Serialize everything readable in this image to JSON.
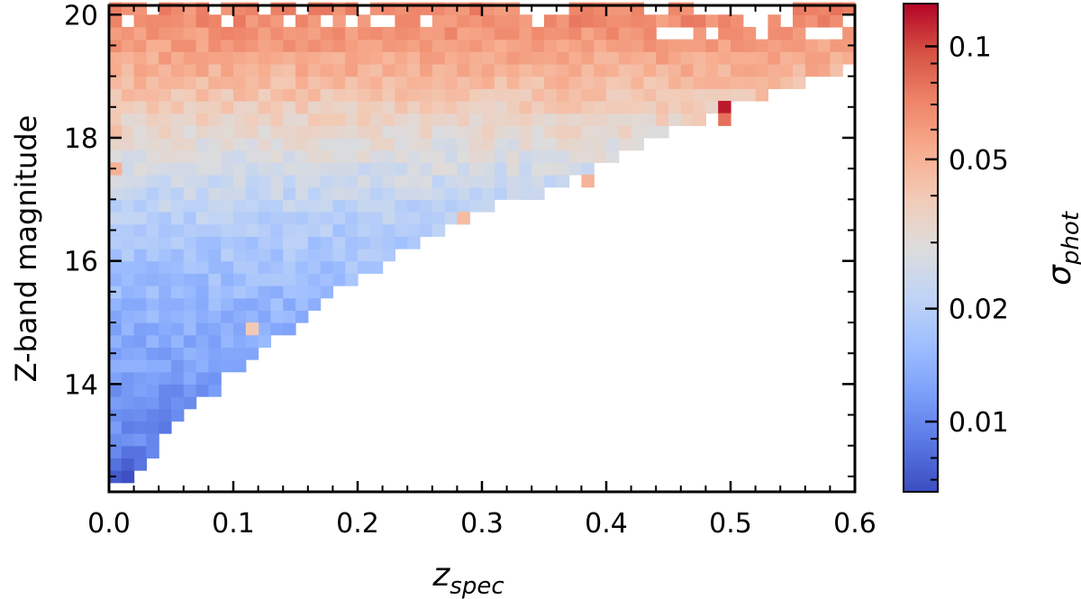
{
  "chart_data": {
    "type": "heatmap",
    "xlabel": "z",
    "xlabel_sub": "spec",
    "ylabel": "Z-band magnitude",
    "colorbar_label": "σ",
    "colorbar_label_sub": "phot",
    "xlim": [
      0.0,
      0.6
    ],
    "ylim": [
      12.25,
      20.15
    ],
    "x_ticks": [
      0.0,
      0.1,
      0.2,
      0.3,
      0.4,
      0.5,
      0.6
    ],
    "x_tick_labels": [
      "0.0",
      "0.1",
      "0.2",
      "0.3",
      "0.4",
      "0.5",
      "0.6"
    ],
    "y_ticks": [
      14,
      16,
      18,
      20
    ],
    "y_tick_labels": [
      "14",
      "16",
      "18",
      "20"
    ],
    "colorbar_scale": "log",
    "colorbar_range": [
      0.0065,
      0.13
    ],
    "colorbar_ticks": [
      0.01,
      0.02,
      0.05,
      0.1
    ],
    "colorbar_tick_labels": [
      "0.01",
      "0.02",
      "0.05",
      "0.1"
    ],
    "colormap": "coolwarm",
    "colormap_stops": [
      "#3b4cc0",
      "#5977e3",
      "#7b9ff9",
      "#9ebeff",
      "#c0d4f5",
      "#dddcdc",
      "#f2cbb7",
      "#f7ac8e",
      "#ee8468",
      "#d65244",
      "#b40426"
    ],
    "bin_width_x": 0.01,
    "bin_width_y": 0.2,
    "grid": false,
    "sigma_trend": {
      "description_free_params": true,
      "mag_points": [
        12.3,
        13.0,
        14.0,
        15.0,
        16.0,
        16.5,
        17.0,
        17.5,
        18.0,
        18.5,
        19.0,
        19.5,
        20.0
      ],
      "sigma_values": [
        0.007,
        0.0095,
        0.0115,
        0.014,
        0.017,
        0.019,
        0.022,
        0.026,
        0.031,
        0.038,
        0.048,
        0.058,
        0.068
      ]
    },
    "coverage_boundary": {
      "mag_points": [
        12.4,
        12.7,
        13.4,
        14.0,
        14.5,
        15.0,
        15.5,
        16.0,
        16.5,
        17.0,
        17.5,
        18.0,
        18.5,
        18.8,
        19.2
      ],
      "zmax_values": [
        0.012,
        0.03,
        0.06,
        0.09,
        0.12,
        0.15,
        0.18,
        0.22,
        0.27,
        0.33,
        0.39,
        0.44,
        0.5,
        0.55,
        0.6
      ]
    },
    "outlier_bins": [
      {
        "x": 0.49,
        "y": 18.4,
        "sigma": 0.12
      },
      {
        "x": 0.49,
        "y": 18.2,
        "sigma": 0.08
      },
      {
        "x": 0.38,
        "y": 17.2,
        "sigma": 0.05
      },
      {
        "x": 0.28,
        "y": 16.6,
        "sigma": 0.045
      },
      {
        "x": 0.11,
        "y": 14.8,
        "sigma": 0.04
      },
      {
        "x": 0.0,
        "y": 17.4,
        "sigma": 0.05
      },
      {
        "x": 0.0,
        "y": 18.0,
        "sigma": 0.045
      }
    ]
  }
}
